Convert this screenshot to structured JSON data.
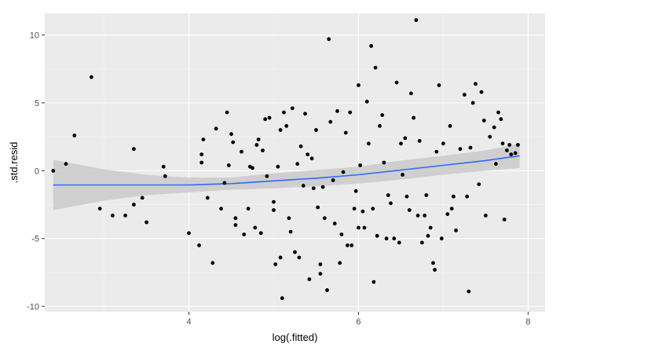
{
  "chart_data": {
    "type": "scatter",
    "title": "",
    "xlabel": "log(.fitted)",
    "ylabel": ".std.resid",
    "xlim": [
      2.3,
      8.2
    ],
    "ylim": [
      -10.4,
      11.6
    ],
    "xticks": [
      4,
      6,
      8
    ],
    "yticks": [
      -10,
      -5,
      0,
      5,
      10
    ],
    "grid": true,
    "legend": "none",
    "colors": {
      "panel": "#ebebeb",
      "grid_major": "#ffffff",
      "grid_minor": "#f5f5f5",
      "points": "#000000",
      "smooth_line": "#3366ff",
      "confidence_band": "#cccccc"
    },
    "points": [
      [
        2.4,
        0.0
      ],
      [
        2.55,
        0.5
      ],
      [
        2.65,
        2.6
      ],
      [
        2.85,
        6.9
      ],
      [
        2.95,
        -2.8
      ],
      [
        3.1,
        -3.3
      ],
      [
        3.25,
        -3.3
      ],
      [
        3.35,
        1.6
      ],
      [
        3.35,
        -2.5
      ],
      [
        3.45,
        -2.0
      ],
      [
        3.5,
        -3.8
      ],
      [
        3.7,
        0.3
      ],
      [
        3.72,
        -0.4
      ],
      [
        4.0,
        -4.6
      ],
      [
        4.12,
        -5.5
      ],
      [
        4.15,
        1.2
      ],
      [
        4.15,
        0.6
      ],
      [
        4.17,
        2.3
      ],
      [
        4.22,
        -2.0
      ],
      [
        4.28,
        -6.8
      ],
      [
        4.32,
        3.1
      ],
      [
        4.38,
        -2.8
      ],
      [
        4.42,
        -0.9
      ],
      [
        4.45,
        4.3
      ],
      [
        4.47,
        0.4
      ],
      [
        4.5,
        2.7
      ],
      [
        4.52,
        2.1
      ],
      [
        4.55,
        -3.5
      ],
      [
        4.55,
        -4.0
      ],
      [
        4.62,
        1.4
      ],
      [
        4.65,
        -4.7
      ],
      [
        4.7,
        -2.8
      ],
      [
        4.72,
        0.3
      ],
      [
        4.75,
        0.2
      ],
      [
        4.78,
        -4.2
      ],
      [
        4.8,
        1.9
      ],
      [
        4.82,
        2.3
      ],
      [
        4.85,
        -4.6
      ],
      [
        4.87,
        1.5
      ],
      [
        4.9,
        3.8
      ],
      [
        4.92,
        -0.4
      ],
      [
        4.95,
        3.9
      ],
      [
        5.0,
        -2.3
      ],
      [
        5.0,
        -2.9
      ],
      [
        5.02,
        -6.9
      ],
      [
        5.05,
        0.3
      ],
      [
        5.08,
        -6.4
      ],
      [
        5.08,
        3.0
      ],
      [
        5.1,
        -9.4
      ],
      [
        5.12,
        4.3
      ],
      [
        5.15,
        3.3
      ],
      [
        5.18,
        -3.5
      ],
      [
        5.2,
        -4.5
      ],
      [
        5.22,
        4.6
      ],
      [
        5.25,
        -6.0
      ],
      [
        5.28,
        0.5
      ],
      [
        5.3,
        -6.4
      ],
      [
        5.32,
        1.8
      ],
      [
        5.35,
        -1.1
      ],
      [
        5.37,
        4.2
      ],
      [
        5.4,
        1.2
      ],
      [
        5.42,
        -8.0
      ],
      [
        5.45,
        0.9
      ],
      [
        5.47,
        -1.3
      ],
      [
        5.5,
        3.0
      ],
      [
        5.52,
        -2.7
      ],
      [
        5.55,
        -6.9
      ],
      [
        5.55,
        -7.6
      ],
      [
        5.58,
        -1.2
      ],
      [
        5.6,
        -3.5
      ],
      [
        5.63,
        -8.8
      ],
      [
        5.65,
        9.7
      ],
      [
        5.67,
        3.6
      ],
      [
        5.7,
        -0.7
      ],
      [
        5.72,
        -3.9
      ],
      [
        5.75,
        4.4
      ],
      [
        5.78,
        -6.8
      ],
      [
        5.8,
        -4.7
      ],
      [
        5.82,
        -0.1
      ],
      [
        5.85,
        2.8
      ],
      [
        5.87,
        -5.5
      ],
      [
        5.9,
        4.3
      ],
      [
        5.92,
        -5.5
      ],
      [
        5.95,
        -2.8
      ],
      [
        5.97,
        -1.5
      ],
      [
        6.0,
        -4.2
      ],
      [
        6.0,
        6.3
      ],
      [
        6.02,
        0.4
      ],
      [
        6.05,
        -3.0
      ],
      [
        6.07,
        -4.2
      ],
      [
        6.1,
        5.1
      ],
      [
        6.12,
        2.0
      ],
      [
        6.15,
        9.2
      ],
      [
        6.17,
        -2.8
      ],
      [
        6.18,
        -8.2
      ],
      [
        6.2,
        7.6
      ],
      [
        6.22,
        -4.8
      ],
      [
        6.25,
        3.3
      ],
      [
        6.28,
        4.1
      ],
      [
        6.3,
        0.6
      ],
      [
        6.33,
        -5.0
      ],
      [
        6.35,
        -1.8
      ],
      [
        6.38,
        -2.4
      ],
      [
        6.42,
        -5.0
      ],
      [
        6.45,
        6.5
      ],
      [
        6.48,
        -5.3
      ],
      [
        6.5,
        2.0
      ],
      [
        6.52,
        -0.3
      ],
      [
        6.55,
        2.4
      ],
      [
        6.57,
        -1.9
      ],
      [
        6.6,
        -2.9
      ],
      [
        6.62,
        5.7
      ],
      [
        6.65,
        3.9
      ],
      [
        6.68,
        11.1
      ],
      [
        6.7,
        -3.3
      ],
      [
        6.72,
        2.2
      ],
      [
        6.75,
        -5.3
      ],
      [
        6.78,
        -3.3
      ],
      [
        6.8,
        -1.8
      ],
      [
        6.82,
        -4.8
      ],
      [
        6.85,
        -4.2
      ],
      [
        6.88,
        -6.8
      ],
      [
        6.9,
        -7.3
      ],
      [
        6.92,
        1.4
      ],
      [
        6.95,
        6.3
      ],
      [
        6.98,
        -5.0
      ],
      [
        7.0,
        2.0
      ],
      [
        7.05,
        -3.2
      ],
      [
        7.08,
        3.3
      ],
      [
        7.1,
        -2.8
      ],
      [
        7.12,
        -1.9
      ],
      [
        7.15,
        -4.4
      ],
      [
        7.2,
        1.6
      ],
      [
        7.25,
        5.6
      ],
      [
        7.28,
        -1.9
      ],
      [
        7.3,
        -8.9
      ],
      [
        7.32,
        1.7
      ],
      [
        7.35,
        5.0
      ],
      [
        7.38,
        6.4
      ],
      [
        7.42,
        -1.0
      ],
      [
        7.45,
        5.8
      ],
      [
        7.48,
        3.7
      ],
      [
        7.5,
        -3.3
      ],
      [
        7.55,
        2.5
      ],
      [
        7.6,
        3.2
      ],
      [
        7.62,
        0.5
      ],
      [
        7.65,
        4.3
      ],
      [
        7.68,
        3.8
      ],
      [
        7.7,
        2.0
      ],
      [
        7.72,
        -3.6
      ],
      [
        7.75,
        1.5
      ],
      [
        7.78,
        1.9
      ],
      [
        7.8,
        1.2
      ],
      [
        7.85,
        1.3
      ],
      [
        7.88,
        1.9
      ]
    ],
    "smooth": {
      "x": [
        2.4,
        3.0,
        3.5,
        4.0,
        4.5,
        5.0,
        5.5,
        6.0,
        6.5,
        7.0,
        7.5,
        7.9
      ],
      "y": [
        -1.05,
        -1.05,
        -1.05,
        -1.05,
        -0.95,
        -0.75,
        -0.55,
        -0.3,
        0.05,
        0.4,
        0.75,
        1.1
      ],
      "lower": [
        -2.9,
        -2.2,
        -1.8,
        -1.6,
        -1.4,
        -1.3,
        -1.15,
        -0.95,
        -0.65,
        -0.3,
        0.0,
        0.2
      ],
      "upper": [
        0.8,
        0.1,
        -0.3,
        -0.5,
        -0.5,
        -0.2,
        0.05,
        0.3,
        0.75,
        1.1,
        1.5,
        2.0
      ]
    }
  }
}
